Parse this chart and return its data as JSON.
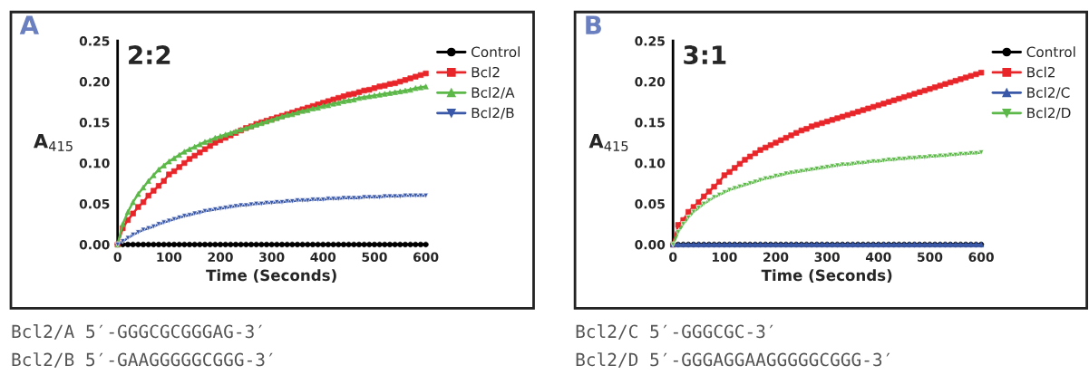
{
  "chart_data": [
    {
      "type": "line",
      "title": "2:2",
      "ylabel": "A$_{415}$",
      "xlabel": "Time (Seconds)",
      "annotations": [
        "A",
        "Bcl2/A 5′-GGGCGCGGGAG-3′",
        "Bcl2/B 5′-GAAGGGGGCGGG-3′"
      ],
      "x": [
        0,
        10,
        20,
        30,
        40,
        50,
        60,
        70,
        80,
        90,
        100,
        110,
        120,
        130,
        140,
        150,
        160,
        170,
        180,
        190,
        200,
        210,
        220,
        230,
        240,
        250,
        260,
        270,
        280,
        290,
        300,
        310,
        320,
        330,
        340,
        350,
        360,
        370,
        380,
        390,
        400,
        410,
        420,
        430,
        440,
        450,
        460,
        470,
        480,
        490,
        500,
        510,
        520,
        530,
        540,
        550,
        560,
        570,
        580,
        590,
        600
      ],
      "xlim": [
        0,
        600
      ],
      "xticks": [
        0,
        100,
        200,
        300,
        400,
        500,
        600
      ],
      "ylim": [
        0,
        0.25
      ],
      "yticks": [
        {
          "value": 0,
          "label": "0.00"
        },
        {
          "value": 0.05,
          "label": "0.05"
        },
        {
          "value": 0.1,
          "label": "0.10"
        },
        {
          "value": 0.15,
          "label": "0.15"
        },
        {
          "value": 0.2,
          "label": "0.20"
        },
        {
          "value": 0.25,
          "label": "0.25"
        }
      ],
      "grid": false,
      "legend": "right",
      "series": [
        {
          "name": "Control",
          "color": "#000000",
          "marker": "circle",
          "values": [
            0,
            0,
            0,
            0,
            0,
            0,
            0,
            0,
            0,
            0,
            0,
            0,
            0,
            0,
            0,
            0,
            0,
            0,
            0,
            0,
            0,
            0,
            0,
            0,
            0,
            0,
            0,
            0,
            0,
            0,
            0,
            0,
            0,
            0,
            0,
            0,
            0,
            0,
            0,
            0,
            0,
            0,
            0,
            0,
            0,
            0,
            0,
            0,
            0,
            0,
            0,
            0,
            0,
            0,
            0,
            0,
            0,
            0,
            0,
            0,
            0
          ]
        },
        {
          "name": "Bcl2",
          "color": "#e8262a",
          "marker": "square",
          "values": [
            0,
            0.02,
            0.03,
            0.038,
            0.046,
            0.052,
            0.06,
            0.066,
            0.072,
            0.078,
            0.086,
            0.09,
            0.095,
            0.1,
            0.105,
            0.109,
            0.113,
            0.117,
            0.121,
            0.125,
            0.128,
            0.131,
            0.134,
            0.137,
            0.14,
            0.143,
            0.145,
            0.148,
            0.15,
            0.152,
            0.154,
            0.156,
            0.158,
            0.16,
            0.162,
            0.164,
            0.166,
            0.168,
            0.17,
            0.172,
            0.174,
            0.176,
            0.178,
            0.18,
            0.182,
            0.184,
            0.185,
            0.187,
            0.189,
            0.19,
            0.192,
            0.194,
            0.195,
            0.197,
            0.198,
            0.2,
            0.202,
            0.204,
            0.206,
            0.208,
            0.21
          ]
        },
        {
          "name": "Bcl2/A",
          "color": "#5cb848",
          "marker": "triangle",
          "values": [
            0,
            0.025,
            0.04,
            0.052,
            0.062,
            0.07,
            0.078,
            0.085,
            0.092,
            0.097,
            0.102,
            0.106,
            0.11,
            0.114,
            0.117,
            0.12,
            0.123,
            0.126,
            0.128,
            0.131,
            0.133,
            0.135,
            0.137,
            0.139,
            0.141,
            0.143,
            0.145,
            0.147,
            0.149,
            0.151,
            0.153,
            0.155,
            0.157,
            0.159,
            0.16,
            0.162,
            0.164,
            0.165,
            0.167,
            0.168,
            0.17,
            0.171,
            0.173,
            0.174,
            0.176,
            0.177,
            0.178,
            0.18,
            0.181,
            0.182,
            0.183,
            0.184,
            0.185,
            0.186,
            0.187,
            0.188,
            0.189,
            0.19,
            0.192,
            0.193,
            0.194
          ]
        },
        {
          "name": "Bcl2/B",
          "color": "#3a58a8",
          "marker": "triangle_down",
          "values": [
            0,
            0.004,
            0.008,
            0.012,
            0.015,
            0.018,
            0.02,
            0.022,
            0.025,
            0.027,
            0.029,
            0.031,
            0.033,
            0.035,
            0.036,
            0.038,
            0.039,
            0.041,
            0.042,
            0.043,
            0.044,
            0.045,
            0.046,
            0.047,
            0.048,
            0.048,
            0.049,
            0.05,
            0.05,
            0.051,
            0.051,
            0.052,
            0.052,
            0.053,
            0.053,
            0.054,
            0.054,
            0.054,
            0.055,
            0.055,
            0.055,
            0.056,
            0.056,
            0.056,
            0.057,
            0.057,
            0.057,
            0.057,
            0.058,
            0.058,
            0.058,
            0.058,
            0.059,
            0.059,
            0.059,
            0.059,
            0.06,
            0.06,
            0.06,
            0.06,
            0.06
          ]
        }
      ]
    },
    {
      "type": "line",
      "title": "3:1",
      "ylabel": "A$_{415}$",
      "xlabel": "Time (Seconds)",
      "annotations": [
        "B",
        "Bcl2/C 5′-GGGCGC-3′",
        "Bcl2/D 5′-GGGAGGAAGGGGGCGGG-3′"
      ],
      "x": [
        0,
        10,
        20,
        30,
        40,
        50,
        60,
        70,
        80,
        90,
        100,
        110,
        120,
        130,
        140,
        150,
        160,
        170,
        180,
        190,
        200,
        210,
        220,
        230,
        240,
        250,
        260,
        270,
        280,
        290,
        300,
        310,
        320,
        330,
        340,
        350,
        360,
        370,
        380,
        390,
        400,
        410,
        420,
        430,
        440,
        450,
        460,
        470,
        480,
        490,
        500,
        510,
        520,
        530,
        540,
        550,
        560,
        570,
        580,
        590,
        600
      ],
      "xlim": [
        0,
        600
      ],
      "xticks": [
        0,
        100,
        200,
        300,
        400,
        500,
        600
      ],
      "ylim": [
        0,
        0.25
      ],
      "yticks": [
        {
          "value": 0,
          "label": "0.00"
        },
        {
          "value": 0.05,
          "label": "0.05"
        },
        {
          "value": 0.1,
          "label": "0.10"
        },
        {
          "value": 0.15,
          "label": "0.15"
        },
        {
          "value": 0.2,
          "label": "0.20"
        },
        {
          "value": 0.25,
          "label": "0.25"
        }
      ],
      "grid": false,
      "legend": "right",
      "series": [
        {
          "name": "Control",
          "color": "#000000",
          "marker": "circle",
          "values": [
            0,
            0,
            0,
            0,
            0,
            0,
            0,
            0,
            0,
            0,
            0,
            0,
            0,
            0,
            0,
            0,
            0,
            0,
            0,
            0,
            0,
            0,
            0,
            0,
            0,
            0,
            0,
            0,
            0,
            0,
            0,
            0,
            0,
            0,
            0,
            0,
            0,
            0,
            0,
            0,
            0,
            0,
            0,
            0,
            0,
            0,
            0,
            0,
            0,
            0,
            0,
            0,
            0,
            0,
            0,
            0,
            0,
            0,
            0,
            0,
            0
          ]
        },
        {
          "name": "Bcl2",
          "color": "#e8262a",
          "marker": "square",
          "values": [
            0,
            0.024,
            0.03,
            0.04,
            0.046,
            0.052,
            0.059,
            0.065,
            0.071,
            0.077,
            0.085,
            0.089,
            0.094,
            0.099,
            0.104,
            0.108,
            0.112,
            0.116,
            0.119,
            0.122,
            0.125,
            0.128,
            0.131,
            0.134,
            0.137,
            0.14,
            0.142,
            0.145,
            0.147,
            0.149,
            0.151,
            0.153,
            0.155,
            0.157,
            0.159,
            0.161,
            0.163,
            0.165,
            0.167,
            0.169,
            0.171,
            0.173,
            0.175,
            0.177,
            0.179,
            0.181,
            0.183,
            0.185,
            0.187,
            0.189,
            0.191,
            0.193,
            0.195,
            0.197,
            0.199,
            0.201,
            0.203,
            0.205,
            0.207,
            0.209,
            0.211
          ]
        },
        {
          "name": "Bcl2/C",
          "color": "#3a58a8",
          "marker": "triangle",
          "values": [
            0,
            0,
            0,
            0,
            0,
            0,
            0,
            0,
            0,
            0,
            0,
            0,
            0,
            0,
            0,
            0,
            0,
            0,
            0,
            0,
            0,
            0,
            0,
            0,
            0,
            0,
            0,
            0,
            0,
            0,
            0,
            0,
            0,
            0,
            0,
            0,
            0,
            0,
            0,
            0,
            0,
            0,
            0,
            0,
            0,
            0,
            0,
            0,
            0,
            0,
            0,
            0,
            0,
            0,
            0,
            0,
            0,
            0,
            0,
            0,
            0
          ]
        },
        {
          "name": "Bcl2/D",
          "color": "#5cb848",
          "marker": "triangle_down",
          "values": [
            0,
            0.015,
            0.025,
            0.033,
            0.04,
            0.045,
            0.05,
            0.054,
            0.058,
            0.061,
            0.064,
            0.067,
            0.069,
            0.071,
            0.073,
            0.075,
            0.077,
            0.079,
            0.081,
            0.082,
            0.084,
            0.085,
            0.087,
            0.088,
            0.089,
            0.09,
            0.091,
            0.092,
            0.093,
            0.094,
            0.095,
            0.096,
            0.097,
            0.098,
            0.098,
            0.099,
            0.1,
            0.1,
            0.101,
            0.102,
            0.102,
            0.103,
            0.104,
            0.104,
            0.105,
            0.105,
            0.106,
            0.106,
            0.107,
            0.107,
            0.108,
            0.108,
            0.109,
            0.109,
            0.11,
            0.11,
            0.111,
            0.111,
            0.112,
            0.112,
            0.113
          ]
        }
      ]
    }
  ]
}
